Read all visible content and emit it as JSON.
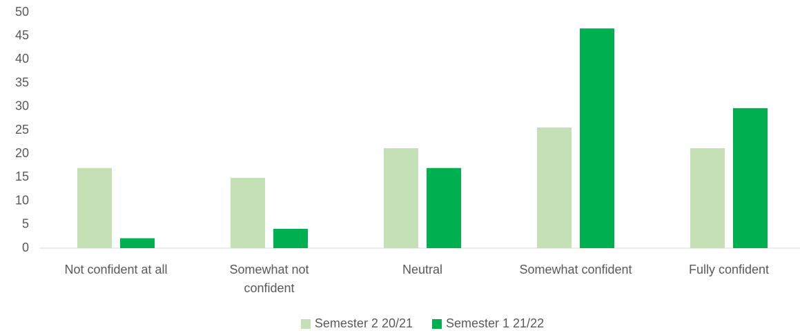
{
  "chart_data": {
    "type": "bar",
    "categories": [
      "Not confident at all",
      "Somewhat not confident",
      "Neutral",
      "Somewhat confident",
      "Fully confident"
    ],
    "series": [
      {
        "name": "Semester 2 20/21",
        "color": "#c5e0b4",
        "values": [
          17,
          14.9,
          21.2,
          25.6,
          21.2
        ]
      },
      {
        "name": "Semester 1 21/22",
        "color": "#00b050",
        "values": [
          2.1,
          4.1,
          17,
          46.6,
          29.7
        ]
      }
    ],
    "ylim": [
      0,
      50
    ],
    "yticks": [
      0,
      5,
      10,
      15,
      20,
      25,
      30,
      35,
      40,
      45,
      50
    ],
    "grid": false,
    "legend": "bottom"
  }
}
